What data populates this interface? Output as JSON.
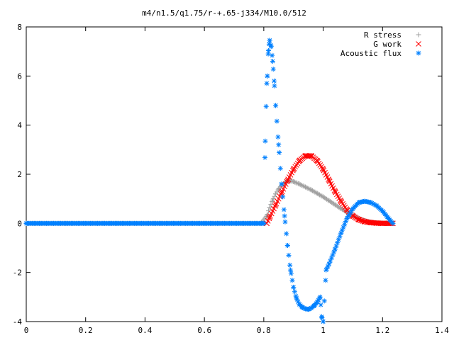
{
  "chart_data": {
    "type": "scatter",
    "title": "m4/n1.5/q1.75/r-+.65-j334/M10.0/512",
    "xlabel": "",
    "ylabel": "",
    "xlim": [
      0,
      1.4
    ],
    "ylim": [
      -4,
      8
    ],
    "xticks": [
      "0",
      "0.2",
      "0.4",
      "0.6",
      "0.8",
      "1",
      "1.2",
      "1.4"
    ],
    "yticks": [
      "-4",
      "-2",
      "0",
      "2",
      "4",
      "6",
      "8"
    ],
    "grid": false,
    "legend_position": "top-right",
    "series": [
      {
        "name": "R stress",
        "marker": "plus",
        "color": "#a0a0a0",
        "x": [
          0,
          0.79,
          0.81,
          0.82,
          0.83,
          0.84,
          0.85,
          0.86,
          0.87,
          0.88,
          0.89,
          0.9,
          0.92,
          0.94,
          0.96,
          0.98,
          1.0,
          1.02,
          1.04,
          1.06,
          1.08,
          1.1,
          1.12,
          1.14,
          1.16,
          1.18,
          1.2,
          1.22,
          1.235
        ],
        "y": [
          0,
          0,
          0.3,
          0.65,
          0.95,
          1.2,
          1.4,
          1.55,
          1.65,
          1.72,
          1.74,
          1.7,
          1.6,
          1.48,
          1.36,
          1.22,
          1.08,
          0.92,
          0.76,
          0.6,
          0.45,
          0.32,
          0.2,
          0.11,
          0.05,
          0.02,
          0.01,
          0,
          0
        ]
      },
      {
        "name": "G work",
        "marker": "cross",
        "color": "#ff0000",
        "x": [
          0.81,
          0.82,
          0.84,
          0.86,
          0.88,
          0.9,
          0.92,
          0.94,
          0.96,
          0.98,
          1.0,
          1.02,
          1.04,
          1.06,
          1.08,
          1.1,
          1.12,
          1.14,
          1.16,
          1.18,
          1.2,
          1.22,
          1.235
        ],
        "y": [
          0,
          0.25,
          0.75,
          1.25,
          1.75,
          2.2,
          2.55,
          2.75,
          2.75,
          2.55,
          2.2,
          1.75,
          1.3,
          0.9,
          0.55,
          0.3,
          0.15,
          0.07,
          0.03,
          0.01,
          0,
          0,
          0
        ]
      },
      {
        "name": "Acoustic flux",
        "marker": "star",
        "color": "#0080ff",
        "x": [
          0,
          0.8,
          0.805,
          0.81,
          0.812,
          0.815,
          0.818,
          0.82,
          0.825,
          0.83,
          0.835,
          0.84,
          0.85,
          0.86,
          0.87,
          0.88,
          0.89,
          0.9,
          0.91,
          0.92,
          0.93,
          0.94,
          0.95,
          0.96,
          0.97,
          0.98,
          0.99,
          0.995,
          1.0,
          1.01,
          1.02,
          1.04,
          1.06,
          1.08,
          1.1,
          1.12,
          1.14,
          1.16,
          1.18,
          1.2,
          1.22,
          1.235
        ],
        "y": [
          0,
          0,
          3.35,
          5.7,
          6.0,
          6.9,
          7.3,
          7.45,
          7.2,
          6.6,
          5.8,
          4.8,
          3.2,
          1.6,
          0.3,
          -0.9,
          -1.9,
          -2.6,
          -3.05,
          -3.3,
          -3.42,
          -3.48,
          -3.5,
          -3.45,
          -3.35,
          -3.2,
          -3.0,
          -3.8,
          -4.0,
          -1.9,
          -1.65,
          -1.05,
          -0.4,
          0.2,
          0.6,
          0.85,
          0.9,
          0.85,
          0.72,
          0.5,
          0.2,
          0
        ]
      }
    ]
  }
}
